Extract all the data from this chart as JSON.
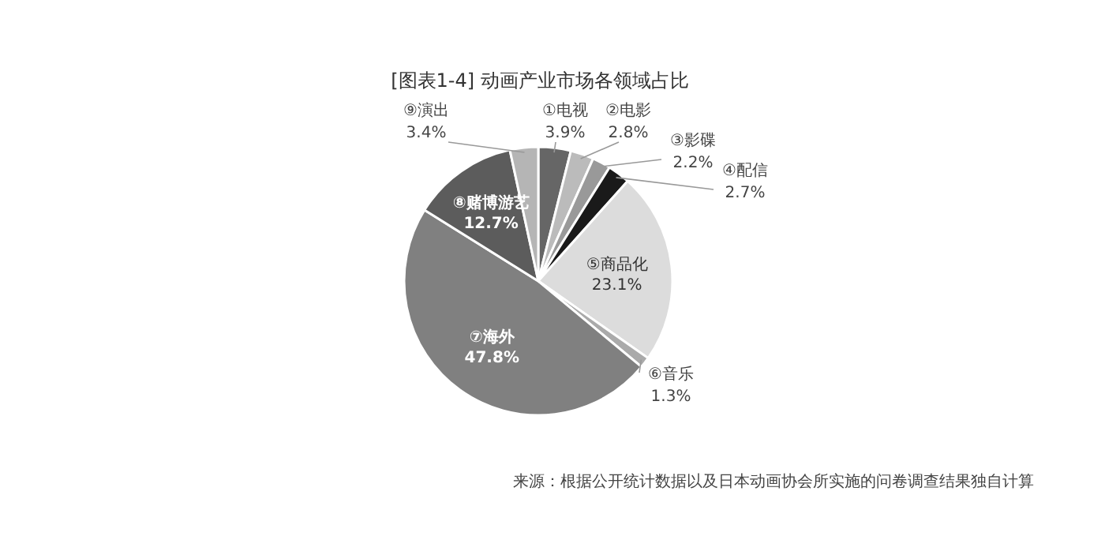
{
  "chart_data": {
    "type": "pie",
    "title": "[图表1-4]  动画产业市场各领域占比",
    "categories": [
      "①电视",
      "②电影",
      "③影碟",
      "④配信",
      "⑤商品化",
      "⑥音乐",
      "⑦海外",
      "⑧赌博游艺",
      "⑨演出"
    ],
    "values": [
      3.9,
      2.8,
      2.2,
      2.7,
      23.1,
      1.3,
      47.8,
      12.7,
      3.4
    ],
    "value_labels": [
      "3.9%",
      "2.8%",
      "2.2%",
      "2.7%",
      "23.1%",
      "1.3%",
      "47.8%",
      "12.7%",
      "3.4%"
    ],
    "colors": [
      "#666666",
      "#bbbbbb",
      "#999999",
      "#1a1a1a",
      "#dcdcdc",
      "#aaaaaa",
      "#808080",
      "#5c5c5c",
      "#b5b5b5"
    ],
    "annotations": [
      "来源：根据公开统计数据以及日本动画协会所实施的问卷调查结果独自计算"
    ]
  }
}
